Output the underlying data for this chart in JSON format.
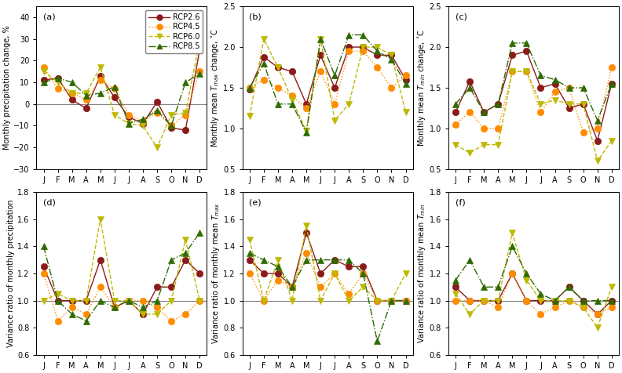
{
  "months": [
    "J",
    "F",
    "M",
    "A",
    "M",
    "J",
    "J",
    "A",
    "S",
    "O",
    "N",
    "D"
  ],
  "panel_labels": [
    "(a)",
    "(b)",
    "(c)",
    "(d)",
    "(e)",
    "(f)"
  ],
  "ylabels": [
    "Monthly precipitation change, %",
    "Monthly mean T_max change, °C",
    "Monthly mean T_min change, °C",
    "Variance ratio of monthly precipitation",
    "Variance ratio of monthly mean T_max",
    "Variance ratio of monthly mean T_min"
  ],
  "ylabel_subscripts": [
    [
      "max",
      "min",
      null,
      "max",
      "min"
    ],
    [
      null,
      null,
      null,
      null,
      null
    ]
  ],
  "series_styles": [
    {
      "label": "RCP2.6",
      "color": "#8B1A1A",
      "linestyle": "-",
      "marker": "o",
      "markercolor": "#8B1A1A"
    },
    {
      "label": "RCP4.5",
      "color": "#FF8C00",
      "linestyle": ":",
      "marker": "o",
      "markercolor": "#FF8C00"
    },
    {
      "label": "RCP6.0",
      "color": "#BDB800",
      "linestyle": "--",
      "marker": "v",
      "markercolor": "#BDB800"
    },
    {
      "label": "RCP8.5",
      "color": "#2E6B00",
      "linestyle": "-.",
      "marker": "^",
      "markercolor": "#2E6B00"
    }
  ],
  "data": {
    "a": [
      [
        11,
        12,
        2,
        -2,
        13,
        3,
        -6,
        -9,
        1,
        -11,
        -12,
        25
      ],
      [
        17,
        7,
        5,
        2,
        11,
        7,
        -5,
        -8,
        -4,
        -10,
        -5,
        15
      ],
      [
        15,
        10,
        5,
        5,
        17,
        -5,
        -9,
        -10,
        -20,
        -5,
        -4,
        29
      ],
      [
        10,
        12,
        10,
        4,
        5,
        8,
        -9,
        -7,
        -3,
        -10,
        10,
        14
      ]
    ],
    "b": [
      [
        1.48,
        1.88,
        1.75,
        1.7,
        1.3,
        1.9,
        1.5,
        2.0,
        2.0,
        1.9,
        1.9,
        1.6
      ],
      [
        1.5,
        1.6,
        1.5,
        1.4,
        1.25,
        1.7,
        1.3,
        1.95,
        1.95,
        1.75,
        1.5,
        1.65
      ],
      [
        1.15,
        2.1,
        1.75,
        1.35,
        0.97,
        2.1,
        1.1,
        1.3,
        2.0,
        2.0,
        1.9,
        1.2
      ],
      [
        1.5,
        1.8,
        1.3,
        1.3,
        0.95,
        2.1,
        1.65,
        2.15,
        2.15,
        1.95,
        1.85,
        1.55
      ]
    ],
    "c": [
      [
        1.2,
        1.58,
        1.2,
        1.3,
        1.9,
        1.95,
        1.5,
        1.55,
        1.25,
        1.3,
        0.85,
        1.55
      ],
      [
        1.05,
        1.2,
        1.0,
        1.0,
        1.7,
        1.7,
        1.2,
        1.45,
        1.5,
        0.95,
        1.0,
        1.75
      ],
      [
        0.8,
        0.7,
        0.8,
        0.8,
        1.7,
        1.7,
        1.3,
        1.35,
        1.3,
        1.3,
        0.6,
        0.85
      ],
      [
        1.3,
        1.5,
        1.2,
        1.3,
        2.05,
        2.05,
        1.65,
        1.6,
        1.5,
        1.5,
        1.1,
        1.55
      ]
    ],
    "d": [
      [
        1.25,
        1.0,
        1.0,
        1.0,
        1.3,
        0.95,
        1.0,
        0.9,
        1.1,
        1.1,
        1.3,
        1.2
      ],
      [
        1.2,
        0.85,
        0.95,
        0.9,
        1.1,
        0.95,
        1.0,
        1.0,
        0.95,
        0.85,
        0.9,
        1.0
      ],
      [
        1.0,
        1.05,
        1.0,
        1.0,
        1.6,
        1.0,
        1.0,
        0.9,
        0.9,
        1.0,
        1.45,
        1.0
      ],
      [
        1.4,
        1.0,
        0.9,
        0.85,
        1.0,
        0.95,
        1.0,
        0.95,
        1.0,
        1.3,
        1.35,
        1.5
      ]
    ],
    "e": [
      [
        1.3,
        1.2,
        1.2,
        1.1,
        1.5,
        1.2,
        1.3,
        1.25,
        1.25,
        1.0,
        1.0,
        1.0
      ],
      [
        1.2,
        1.0,
        1.15,
        1.1,
        1.35,
        1.1,
        1.2,
        1.05,
        1.2,
        1.0,
        1.0,
        1.0
      ],
      [
        1.45,
        1.0,
        1.3,
        1.0,
        1.55,
        1.0,
        1.2,
        1.0,
        1.1,
        1.0,
        1.0,
        1.2
      ],
      [
        1.35,
        1.3,
        1.25,
        1.1,
        1.3,
        1.3,
        1.3,
        1.3,
        1.2,
        0.7,
        1.0,
        1.0
      ]
    ],
    "f": [
      [
        1.1,
        1.0,
        1.0,
        1.0,
        1.2,
        1.0,
        1.0,
        1.0,
        1.1,
        1.0,
        0.9,
        1.0
      ],
      [
        1.0,
        1.0,
        1.0,
        0.95,
        1.2,
        1.0,
        0.9,
        0.95,
        1.0,
        0.95,
        0.9,
        0.95
      ],
      [
        1.05,
        0.9,
        1.0,
        1.0,
        1.5,
        1.15,
        1.0,
        1.0,
        1.0,
        0.95,
        0.8,
        1.1
      ],
      [
        1.15,
        1.3,
        1.1,
        1.1,
        1.4,
        1.2,
        1.05,
        1.0,
        1.1,
        1.0,
        1.0,
        1.0
      ]
    ]
  },
  "ylims": {
    "a": [
      -30,
      45
    ],
    "b": [
      0.5,
      2.5
    ],
    "c": [
      0.5,
      2.5
    ],
    "d": [
      0.6,
      1.8
    ],
    "e": [
      0.6,
      1.8
    ],
    "f": [
      0.6,
      1.8
    ]
  },
  "yticks": {
    "a": [
      -30,
      -20,
      -10,
      0,
      10,
      20,
      30,
      40
    ],
    "b": [
      0.5,
      1.0,
      1.5,
      2.0,
      2.5
    ],
    "c": [
      0.5,
      1.0,
      1.5,
      2.0,
      2.5
    ],
    "d": [
      0.6,
      0.8,
      1.0,
      1.2,
      1.4,
      1.6,
      1.8
    ],
    "e": [
      0.6,
      0.8,
      1.0,
      1.2,
      1.4,
      1.6,
      1.8
    ],
    "f": [
      0.6,
      0.8,
      1.0,
      1.2,
      1.4,
      1.6,
      1.8
    ]
  },
  "hline_vals": {
    "a": 0,
    "b": 0,
    "c": 0,
    "d": 1.0,
    "e": 1.0,
    "f": 1.0
  },
  "background_color": "#ffffff",
  "markersize": 6,
  "linewidth": 1.0
}
